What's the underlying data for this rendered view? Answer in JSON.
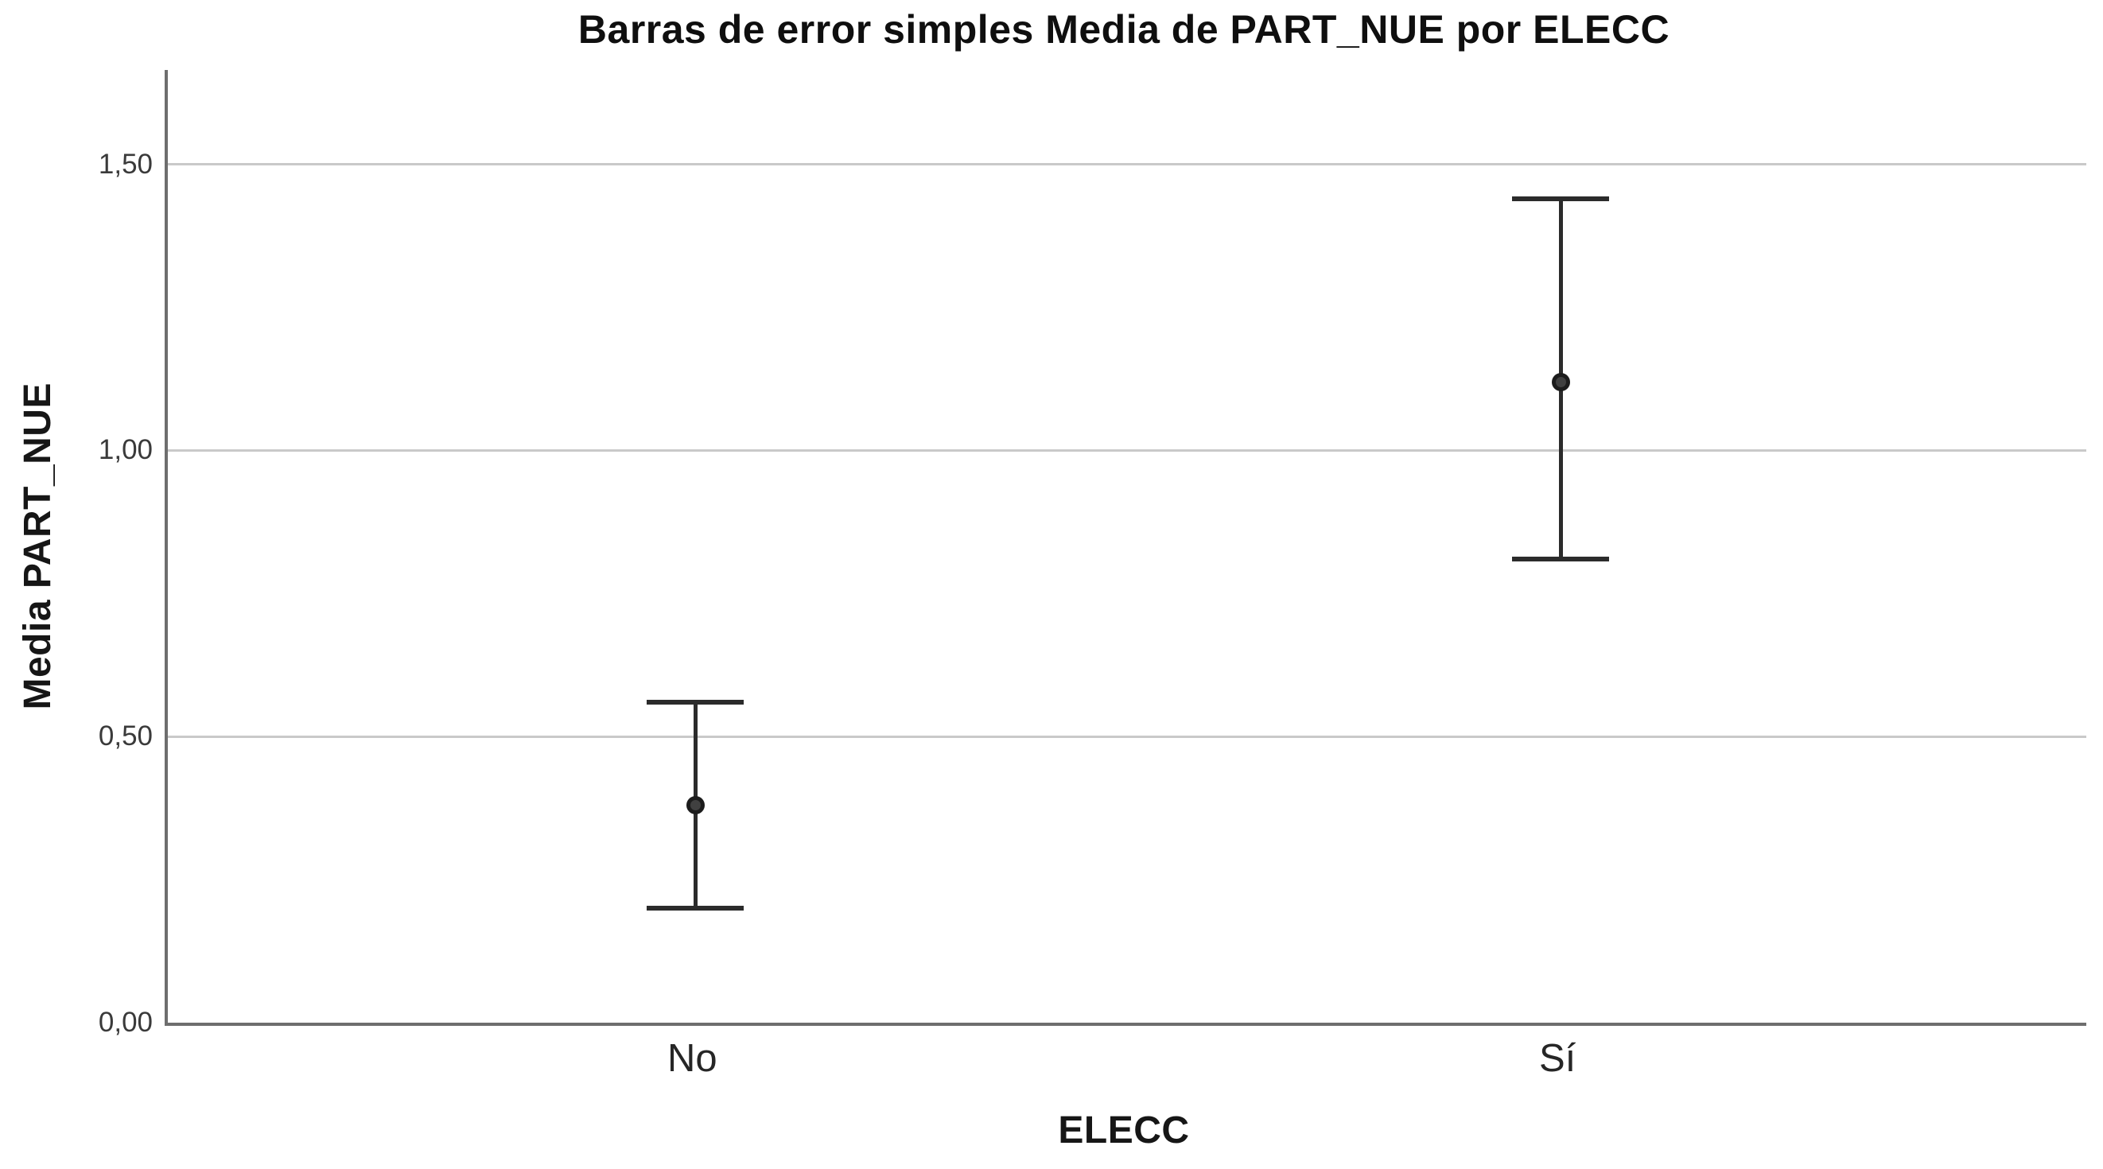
{
  "chart_data": {
    "type": "scatter",
    "subtype": "simple_error_bars",
    "title": "Barras de error simples Media de PART_NUE por ELECC",
    "xlabel": "ELECC",
    "ylabel": "Media PART_NUE",
    "categories": [
      "No",
      "Sí"
    ],
    "category_positions": [
      0.275,
      0.726
    ],
    "points": [
      {
        "category": "No",
        "mean": 0.38,
        "ci_low": 0.2,
        "ci_high": 0.56
      },
      {
        "category": "Sí",
        "mean": 1.12,
        "ci_low": 0.81,
        "ci_high": 1.44
      }
    ],
    "yticks": [
      0,
      0.5,
      1.0,
      1.5
    ],
    "ytick_labels": [
      "0,00",
      "0,50",
      "1,00",
      "1,50"
    ],
    "ylim": [
      0,
      1.665
    ],
    "grid": "horizontal",
    "legend": "none"
  },
  "style": {
    "background": "#ffffff",
    "title_color": "#0f0f0f",
    "axis_label_color": "#161616",
    "tick_label_color": "#3a3a3a",
    "category_label_color": "#262626",
    "axis_line_color": "#6e6e6e",
    "gridline_color": "#c9c9c9",
    "error_bar_color": "#2b2b2b",
    "marker_fill": "#404040",
    "marker_stroke": "#1c1c1c"
  }
}
